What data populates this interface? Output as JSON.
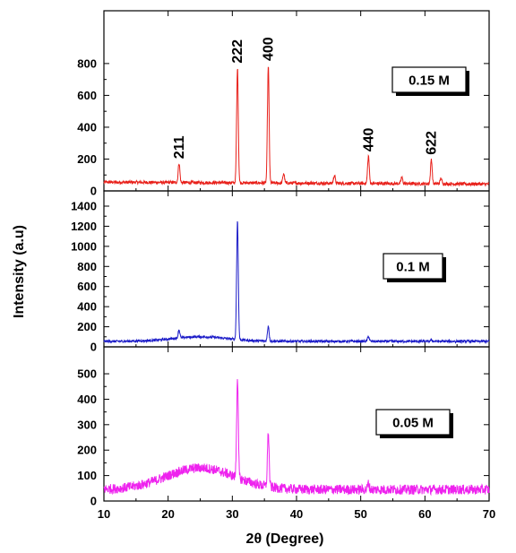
{
  "chart_data": {
    "type": "line",
    "xlabel": "2θ  (Degree)",
    "ylabel": "Intensity (a.u)",
    "xlim": [
      10,
      70
    ],
    "x_ticks": [
      10,
      20,
      30,
      40,
      50,
      60,
      70
    ],
    "grid": false,
    "panels": [
      {
        "name": "0.15 M",
        "color": "#e8201a",
        "ylim": [
          0,
          850
        ],
        "y_ticks": [
          0,
          200,
          400,
          600,
          800
        ],
        "baseline": 55,
        "noise": 10,
        "peaks": [
          {
            "x": 21.7,
            "y": 175
          },
          {
            "x": 30.8,
            "y": 775
          },
          {
            "x": 35.6,
            "y": 790
          },
          {
            "x": 38.0,
            "y": 110
          },
          {
            "x": 45.9,
            "y": 100
          },
          {
            "x": 51.2,
            "y": 220
          },
          {
            "x": 56.4,
            "y": 85
          },
          {
            "x": 61.0,
            "y": 200
          },
          {
            "x": 62.5,
            "y": 80
          }
        ],
        "peak_labels": [
          {
            "text": "211",
            "x": 21.7,
            "y": 190
          },
          {
            "text": "222",
            "x": 30.8,
            "y": 790
          },
          {
            "text": "400",
            "x": 35.6,
            "y": 805
          },
          {
            "text": "440",
            "x": 51.2,
            "y": 235
          },
          {
            "text": "622",
            "x": 61.0,
            "y": 215
          }
        ]
      },
      {
        "name": "0.1 M",
        "color": "#1c1cc8",
        "ylim": [
          0,
          1400
        ],
        "y_ticks": [
          0,
          200,
          400,
          600,
          800,
          1000,
          1200,
          1400
        ],
        "baseline": 65,
        "noise": 12,
        "peaks": [
          {
            "x": 21.7,
            "y": 170
          },
          {
            "x": 30.8,
            "y": 1260
          },
          {
            "x": 35.6,
            "y": 210
          },
          {
            "x": 51.2,
            "y": 105
          },
          {
            "x": 61.0,
            "y": 70
          }
        ],
        "peak_labels": []
      },
      {
        "name": "0.05 M",
        "color": "#ee22ee",
        "ylim": [
          0,
          560
        ],
        "y_ticks": [
          0,
          100,
          200,
          300,
          400,
          500
        ],
        "baseline": 70,
        "noise": 12,
        "peaks": [
          {
            "x": 30.8,
            "y": 485
          },
          {
            "x": 35.6,
            "y": 270
          },
          {
            "x": 51.2,
            "y": 70
          }
        ],
        "peak_labels": []
      }
    ]
  }
}
